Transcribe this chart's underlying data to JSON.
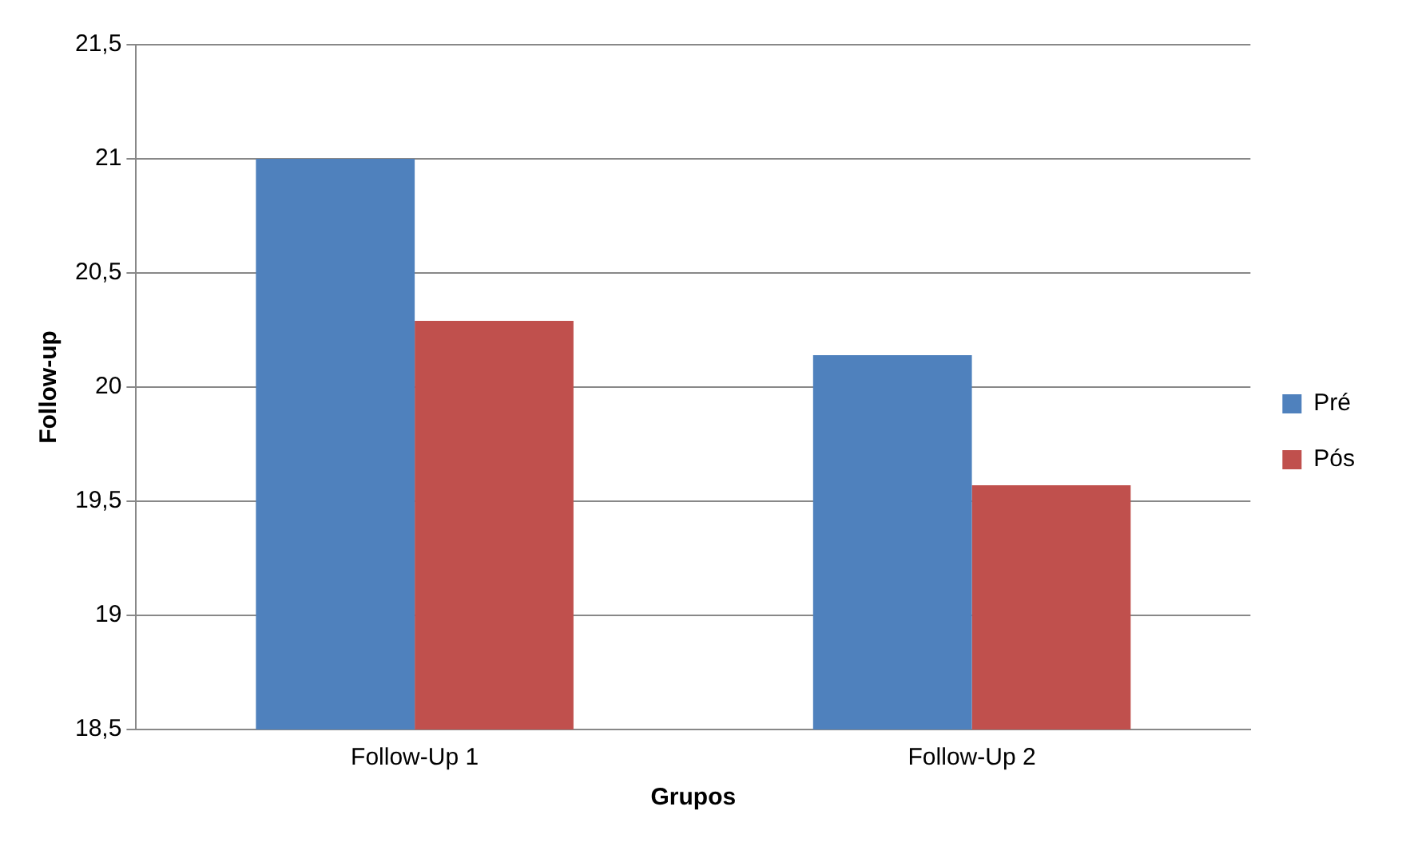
{
  "chart_data": {
    "type": "bar",
    "xlabel": "Grupos",
    "ylabel": "Follow-up",
    "categories": [
      "Follow-Up 1",
      "Follow-Up 2"
    ],
    "series": [
      {
        "name": "Pré",
        "color": "#4f81bd",
        "values": [
          21.0,
          20.14
        ]
      },
      {
        "name": "Pós",
        "color": "#c0504d",
        "values": [
          20.29,
          19.57
        ]
      }
    ],
    "ylim": [
      18.5,
      21.5
    ],
    "yticks": [
      {
        "value": 18.5,
        "label": "18,5"
      },
      {
        "value": 19,
        "label": "19"
      },
      {
        "value": 19.5,
        "label": "19,5"
      },
      {
        "value": 20,
        "label": "20"
      },
      {
        "value": 20.5,
        "label": "20,5"
      },
      {
        "value": 21,
        "label": "21"
      },
      {
        "value": 21.5,
        "label": "21,5"
      }
    ],
    "grid": "y",
    "legend": "right"
  }
}
